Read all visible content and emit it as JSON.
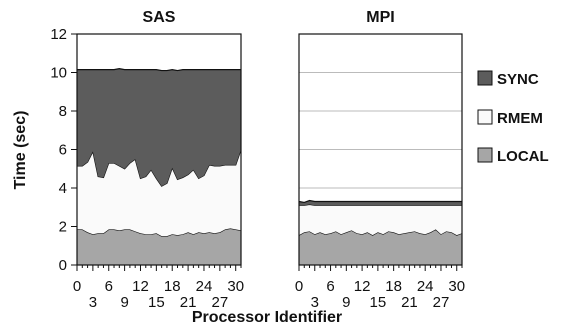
{
  "chart_data": {
    "type": "area",
    "ylabel": "Time (sec)",
    "xlabel": "Processor Identifier",
    "ylim": [
      0,
      12
    ],
    "xlim": [
      0,
      31
    ],
    "y_ticks": [
      "0",
      "2",
      "4",
      "6",
      "8",
      "10",
      "12"
    ],
    "x_ticks": [
      "0",
      "6",
      "12",
      "18",
      "24",
      "30",
      "3",
      "9",
      "15",
      "21",
      "27"
    ],
    "legend": {
      "placement": "right",
      "entries": [
        "SYNC",
        "RMEM",
        "LOCAL"
      ]
    },
    "colors": {
      "SYNC": "#5c5c5c",
      "RMEM": "#fafafa",
      "LOCAL": "#a6a6a6"
    },
    "panels": [
      {
        "title": "SAS",
        "x": [
          0,
          1,
          2,
          3,
          4,
          5,
          6,
          7,
          8,
          9,
          10,
          11,
          12,
          13,
          14,
          15,
          16,
          17,
          18,
          19,
          20,
          21,
          22,
          23,
          24,
          25,
          26,
          27,
          28,
          29,
          30,
          31
        ],
        "series": [
          {
            "name": "LOCAL",
            "values": [
              1.85,
              1.85,
              1.7,
              1.6,
              1.65,
              1.65,
              1.85,
              1.85,
              1.8,
              1.85,
              1.85,
              1.75,
              1.65,
              1.6,
              1.6,
              1.65,
              1.5,
              1.5,
              1.6,
              1.55,
              1.6,
              1.7,
              1.6,
              1.7,
              1.65,
              1.7,
              1.65,
              1.7,
              1.85,
              1.9,
              1.85,
              1.8
            ]
          },
          {
            "name": "RMEM",
            "values": [
              3.3,
              3.3,
              3.65,
              4.3,
              2.95,
              2.9,
              3.45,
              3.45,
              3.35,
              3.15,
              3.45,
              3.75,
              2.85,
              3.0,
              3.35,
              2.85,
              2.6,
              2.75,
              3.45,
              2.9,
              2.95,
              3.0,
              3.35,
              2.8,
              3.0,
              3.5,
              3.5,
              3.45,
              3.35,
              3.3,
              3.35,
              4.2
            ]
          },
          {
            "name": "SYNC",
            "values": [
              5.0,
              5.0,
              4.8,
              4.25,
              5.55,
              5.6,
              4.85,
              4.85,
              5.05,
              5.15,
              4.85,
              4.65,
              5.65,
              5.55,
              5.2,
              5.65,
              6.0,
              5.85,
              5.1,
              5.65,
              5.6,
              5.45,
              5.2,
              5.65,
              5.5,
              4.95,
              5.0,
              5.0,
              4.95,
              4.95,
              4.95,
              4.15
            ]
          }
        ]
      },
      {
        "title": "MPI",
        "x": [
          0,
          1,
          2,
          3,
          4,
          5,
          6,
          7,
          8,
          9,
          10,
          11,
          12,
          13,
          14,
          15,
          16,
          17,
          18,
          19,
          20,
          21,
          22,
          23,
          24,
          25,
          26,
          27,
          28,
          29,
          30,
          31
        ],
        "series": [
          {
            "name": "LOCAL",
            "values": [
              1.55,
              1.7,
              1.75,
              1.6,
              1.7,
              1.6,
              1.65,
              1.75,
              1.6,
              1.7,
              1.8,
              1.65,
              1.6,
              1.7,
              1.55,
              1.7,
              1.6,
              1.75,
              1.7,
              1.6,
              1.65,
              1.7,
              1.75,
              1.65,
              1.6,
              1.7,
              1.85,
              1.6,
              1.75,
              1.7,
              1.55,
              1.65
            ]
          },
          {
            "name": "RMEM",
            "values": [
              1.55,
              1.4,
              1.4,
              1.5,
              1.4,
              1.5,
              1.45,
              1.35,
              1.5,
              1.4,
              1.3,
              1.45,
              1.5,
              1.4,
              1.55,
              1.4,
              1.5,
              1.35,
              1.4,
              1.5,
              1.45,
              1.4,
              1.35,
              1.45,
              1.5,
              1.4,
              1.25,
              1.5,
              1.35,
              1.4,
              1.55,
              1.45
            ]
          },
          {
            "name": "SYNC",
            "values": [
              0.2,
              0.15,
              0.2,
              0.2,
              0.2,
              0.2,
              0.2,
              0.2,
              0.2,
              0.2,
              0.2,
              0.2,
              0.2,
              0.2,
              0.2,
              0.2,
              0.2,
              0.2,
              0.2,
              0.2,
              0.2,
              0.2,
              0.2,
              0.2,
              0.2,
              0.2,
              0.2,
              0.2,
              0.2,
              0.2,
              0.2,
              0.2
            ]
          }
        ]
      }
    ]
  }
}
